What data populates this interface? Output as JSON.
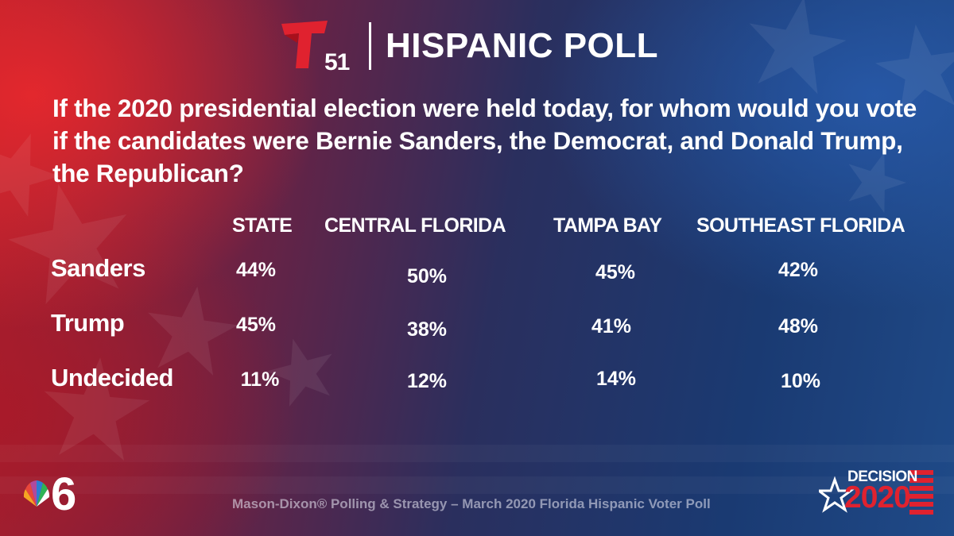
{
  "header": {
    "station_number": "51",
    "title": "HISPANIC POLL"
  },
  "question": "If the 2020 presidential election were held today, for whom would you vote if the candidates were Bernie Sanders, the Democrat, and Donald Trump, the Republican?",
  "table": {
    "columns": [
      "STATE",
      "CENTRAL FLORIDA",
      "TAMPA BAY",
      "SOUTHEAST FLORIDA"
    ],
    "rows": [
      {
        "label": "Sanders",
        "values": [
          "44%",
          "50%",
          "45%",
          "42%"
        ]
      },
      {
        "label": "Trump",
        "values": [
          "45%",
          "38%",
          "41%",
          "48%"
        ]
      },
      {
        "label": "Undecided",
        "values": [
          "11%",
          "12%",
          "14%",
          "10%"
        ]
      }
    ]
  },
  "footer": {
    "source": "Mason-Dixon® Polling & Strategy – March 2020 Florida Hispanic Voter Poll",
    "nbc_channel": "6",
    "decision_word": "DECISION",
    "decision_year": "2020"
  },
  "colors": {
    "telemundo_red": "#e0222f",
    "text": "#ffffff"
  }
}
